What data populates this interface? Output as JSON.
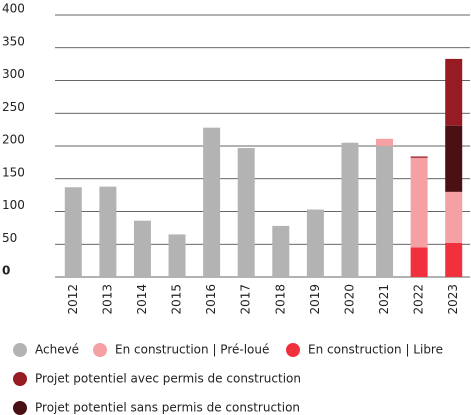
{
  "chart_data": {
    "type": "bar",
    "stacked": true,
    "categories": [
      "2012",
      "2013",
      "2014",
      "2015",
      "2016",
      "2017",
      "2018",
      "2019",
      "2020",
      "2021",
      "2022",
      "2023"
    ],
    "series": [
      {
        "name": "Achevé",
        "color": "#b3b3b3",
        "values": [
          137,
          138,
          86,
          65,
          228,
          197,
          78,
          103,
          205,
          200,
          null,
          null
        ]
      },
      {
        "name": "En construction | Pré-loué",
        "color": "#f5a0a2",
        "values": [
          null,
          null,
          null,
          null,
          null,
          null,
          null,
          null,
          null,
          11,
          137,
          78
        ]
      },
      {
        "name": "En construction | Libre",
        "color": "#f0303c",
        "values": [
          null,
          null,
          null,
          null,
          null,
          null,
          null,
          null,
          null,
          null,
          45,
          52
        ]
      },
      {
        "name": "Projet potentiel avec permis de construction",
        "color": "#971b22",
        "values": [
          null,
          null,
          null,
          null,
          null,
          null,
          null,
          null,
          null,
          null,
          2,
          102
        ]
      },
      {
        "name": "Projet potentiel sans permis de construction",
        "color": "#4a1014",
        "values": [
          null,
          null,
          null,
          null,
          null,
          null,
          null,
          null,
          null,
          null,
          null,
          101
        ]
      }
    ],
    "ylim": [
      0,
      400
    ],
    "yticks": [
      0,
      50,
      100,
      150,
      200,
      250,
      300,
      350,
      400
    ],
    "grid": true
  }
}
